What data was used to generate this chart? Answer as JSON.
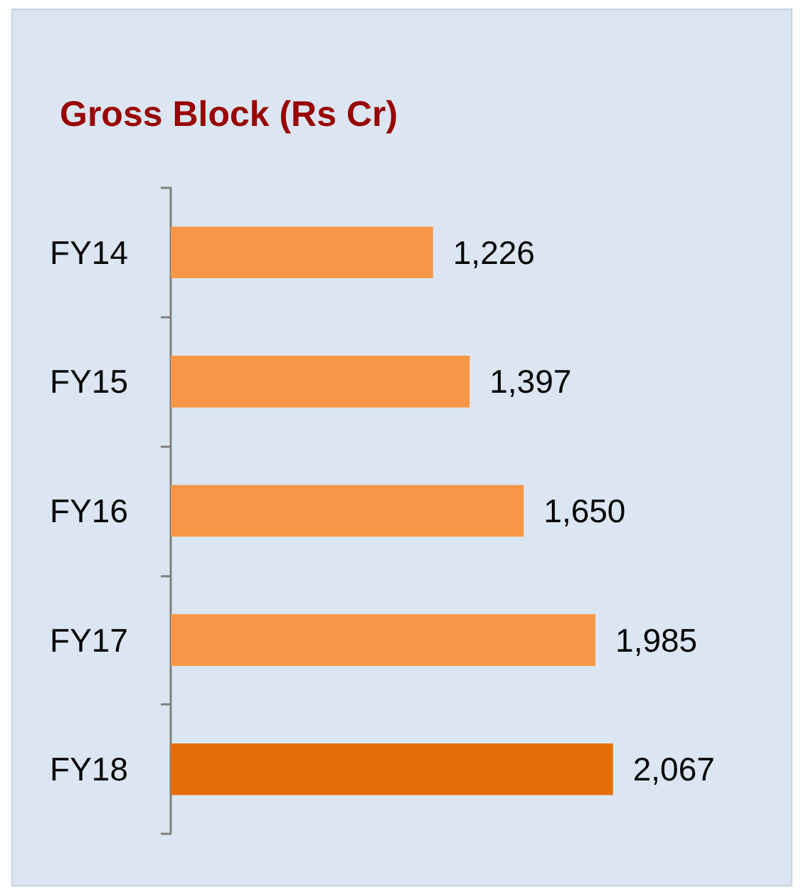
{
  "chart_data": {
    "type": "bar",
    "orientation": "horizontal",
    "title": "Gross Block (Rs Cr)",
    "categories": [
      "FY14",
      "FY15",
      "FY16",
      "FY17",
      "FY18"
    ],
    "values": [
      1226,
      1397,
      1650,
      1985,
      2067
    ],
    "colors": [
      "#f79646",
      "#f79646",
      "#f79646",
      "#f79646",
      "#e46c0a"
    ],
    "value_labels": [
      "1,226",
      "1,397",
      "1,650",
      "1,985",
      "2,067"
    ]
  }
}
